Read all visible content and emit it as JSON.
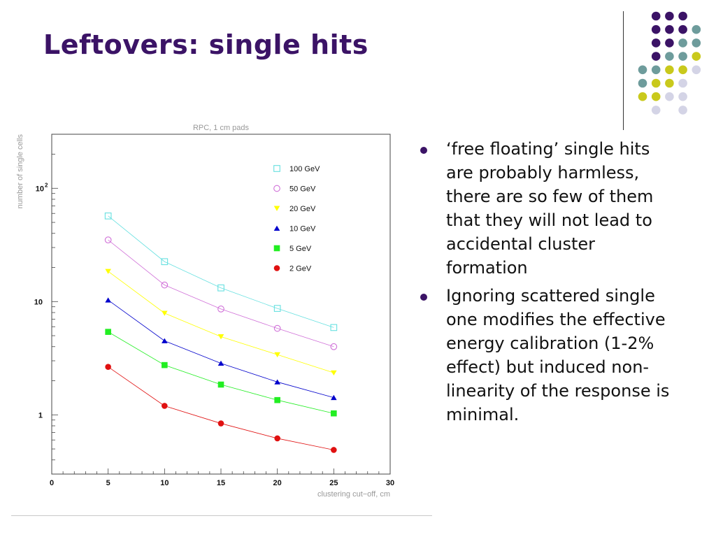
{
  "slide": {
    "title": "Leftovers: single hits",
    "bullets": [
      "‘free floating’  single hits are probably harmless, there are so few of them that they will not lead to accidental cluster formation",
      "Ignoring scattered single one modifies the effective energy calibration (1-2% effect) but induced non-linearity of the response is minimal."
    ]
  },
  "decoration": {
    "dot_colors": [
      "#3b1366",
      "#6e9c9c",
      "#c9c91c",
      "#d4d4e6"
    ],
    "dot_pattern": [
      [
        null,
        0,
        0,
        0,
        null
      ],
      [
        null,
        0,
        0,
        0,
        1
      ],
      [
        null,
        0,
        0,
        1,
        1
      ],
      [
        null,
        0,
        1,
        1,
        2
      ],
      [
        1,
        1,
        2,
        2,
        3
      ],
      [
        1,
        2,
        2,
        3,
        null
      ],
      [
        2,
        2,
        3,
        3,
        null
      ],
      [
        null,
        3,
        null,
        3,
        null
      ]
    ]
  },
  "chart_data": {
    "type": "scatter",
    "title": "RPC, 1 cm pads",
    "xlabel": "clustering cut−off, cm",
    "ylabel": "number of single cells",
    "xlim": [
      0,
      30
    ],
    "ylim": [
      0.3,
      300
    ],
    "y_scale": "log",
    "grid": false,
    "legend_position": "top-right",
    "x_ticks": [
      0,
      5,
      10,
      15,
      20,
      25,
      30
    ],
    "y_ticks": [
      {
        "value": 1,
        "label": "1"
      },
      {
        "value": 10,
        "label": "10"
      },
      {
        "value": 100,
        "label": "10",
        "exponent": "2"
      }
    ],
    "x": [
      5,
      10,
      15,
      20,
      25
    ],
    "series": [
      {
        "name": "100 GeV",
        "marker": "open-square",
        "color": "#66e0e0",
        "values": [
          57,
          22.5,
          13.2,
          8.7,
          5.9
        ]
      },
      {
        "name": "50 GeV",
        "marker": "open-circle",
        "color": "#d070d8",
        "values": [
          35,
          14,
          8.6,
          5.8,
          4.0
        ]
      },
      {
        "name": "20 GeV",
        "marker": "down-triangle",
        "color": "#ffff00",
        "values": [
          18.5,
          7.9,
          4.9,
          3.4,
          2.35
        ]
      },
      {
        "name": "10 GeV",
        "marker": "up-triangle",
        "color": "#0000cc",
        "values": [
          10.3,
          4.5,
          2.85,
          1.95,
          1.42
        ]
      },
      {
        "name": "5 GeV",
        "marker": "filled-square",
        "color": "#22ee22",
        "values": [
          5.4,
          2.75,
          1.85,
          1.35,
          1.03
        ]
      },
      {
        "name": "2 GeV",
        "marker": "filled-circle",
        "color": "#e01010",
        "values": [
          2.65,
          1.2,
          0.84,
          0.62,
          0.49
        ]
      }
    ]
  }
}
